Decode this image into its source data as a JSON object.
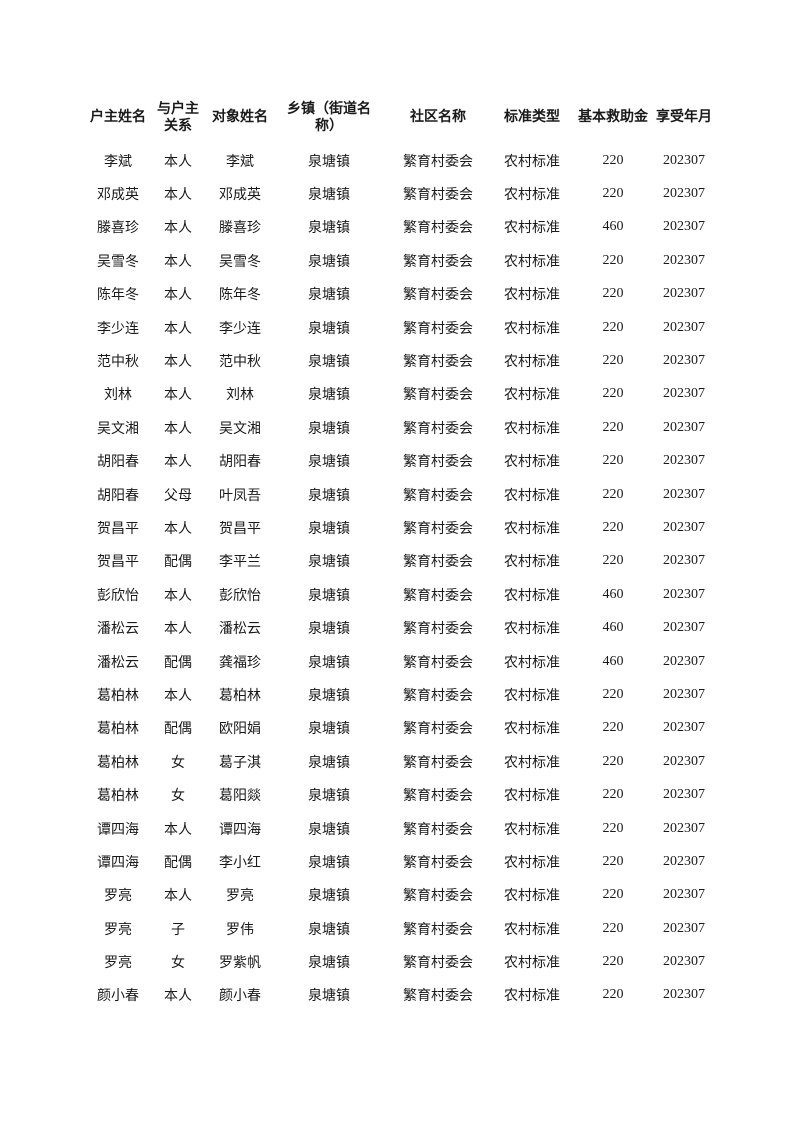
{
  "page": {
    "background": "#ffffff",
    "text_color": "#1a1a1a"
  },
  "table": {
    "columns": [
      {
        "label": "户主姓名",
        "lines": [
          "户主姓名"
        ]
      },
      {
        "label": "与户主关系",
        "lines": [
          "与户主",
          "关系"
        ]
      },
      {
        "label": "对象姓名",
        "lines": [
          "对象姓名"
        ]
      },
      {
        "label": "乡镇（街道名称）",
        "lines": [
          "乡镇（街道名",
          "称）"
        ]
      },
      {
        "label": "社区名称",
        "lines": [
          "社区名称"
        ]
      },
      {
        "label": "标准类型",
        "lines": [
          "标准类型"
        ]
      },
      {
        "label": "基本救助金",
        "lines": [
          "基本救助金"
        ]
      },
      {
        "label": "享受年月",
        "lines": [
          "享受年月"
        ]
      }
    ],
    "rows": [
      [
        "李斌",
        "本人",
        "李斌",
        "泉塘镇",
        "繁育村委会",
        "农村标准",
        "220",
        "202307"
      ],
      [
        "邓成英",
        "本人",
        "邓成英",
        "泉塘镇",
        "繁育村委会",
        "农村标准",
        "220",
        "202307"
      ],
      [
        "滕喜珍",
        "本人",
        "滕喜珍",
        "泉塘镇",
        "繁育村委会",
        "农村标准",
        "460",
        "202307"
      ],
      [
        "吴雪冬",
        "本人",
        "吴雪冬",
        "泉塘镇",
        "繁育村委会",
        "农村标准",
        "220",
        "202307"
      ],
      [
        "陈年冬",
        "本人",
        "陈年冬",
        "泉塘镇",
        "繁育村委会",
        "农村标准",
        "220",
        "202307"
      ],
      [
        "李少连",
        "本人",
        "李少连",
        "泉塘镇",
        "繁育村委会",
        "农村标准",
        "220",
        "202307"
      ],
      [
        "范中秋",
        "本人",
        "范中秋",
        "泉塘镇",
        "繁育村委会",
        "农村标准",
        "220",
        "202307"
      ],
      [
        "刘林",
        "本人",
        "刘林",
        "泉塘镇",
        "繁育村委会",
        "农村标准",
        "220",
        "202307"
      ],
      [
        "吴文湘",
        "本人",
        "吴文湘",
        "泉塘镇",
        "繁育村委会",
        "农村标准",
        "220",
        "202307"
      ],
      [
        "胡阳春",
        "本人",
        "胡阳春",
        "泉塘镇",
        "繁育村委会",
        "农村标准",
        "220",
        "202307"
      ],
      [
        "胡阳春",
        "父母",
        "叶凤吾",
        "泉塘镇",
        "繁育村委会",
        "农村标准",
        "220",
        "202307"
      ],
      [
        "贺昌平",
        "本人",
        "贺昌平",
        "泉塘镇",
        "繁育村委会",
        "农村标准",
        "220",
        "202307"
      ],
      [
        "贺昌平",
        "配偶",
        "李平兰",
        "泉塘镇",
        "繁育村委会",
        "农村标准",
        "220",
        "202307"
      ],
      [
        "彭欣怡",
        "本人",
        "彭欣怡",
        "泉塘镇",
        "繁育村委会",
        "农村标准",
        "460",
        "202307"
      ],
      [
        "潘松云",
        "本人",
        "潘松云",
        "泉塘镇",
        "繁育村委会",
        "农村标准",
        "460",
        "202307"
      ],
      [
        "潘松云",
        "配偶",
        "龚福珍",
        "泉塘镇",
        "繁育村委会",
        "农村标准",
        "460",
        "202307"
      ],
      [
        "葛柏林",
        "本人",
        "葛柏林",
        "泉塘镇",
        "繁育村委会",
        "农村标准",
        "220",
        "202307"
      ],
      [
        "葛柏林",
        "配偶",
        "欧阳娟",
        "泉塘镇",
        "繁育村委会",
        "农村标准",
        "220",
        "202307"
      ],
      [
        "葛柏林",
        "女",
        "葛子淇",
        "泉塘镇",
        "繁育村委会",
        "农村标准",
        "220",
        "202307"
      ],
      [
        "葛柏林",
        "女",
        "葛阳燚",
        "泉塘镇",
        "繁育村委会",
        "农村标准",
        "220",
        "202307"
      ],
      [
        "谭四海",
        "本人",
        "谭四海",
        "泉塘镇",
        "繁育村委会",
        "农村标准",
        "220",
        "202307"
      ],
      [
        "谭四海",
        "配偶",
        "李小红",
        "泉塘镇",
        "繁育村委会",
        "农村标准",
        "220",
        "202307"
      ],
      [
        "罗亮",
        "本人",
        "罗亮",
        "泉塘镇",
        "繁育村委会",
        "农村标准",
        "220",
        "202307"
      ],
      [
        "罗亮",
        "子",
        "罗伟",
        "泉塘镇",
        "繁育村委会",
        "农村标准",
        "220",
        "202307"
      ],
      [
        "罗亮",
        "女",
        "罗紫帆",
        "泉塘镇",
        "繁育村委会",
        "农村标准",
        "220",
        "202307"
      ],
      [
        "颜小春",
        "本人",
        "颜小春",
        "泉塘镇",
        "繁育村委会",
        "农村标准",
        "220",
        "202307"
      ]
    ]
  }
}
